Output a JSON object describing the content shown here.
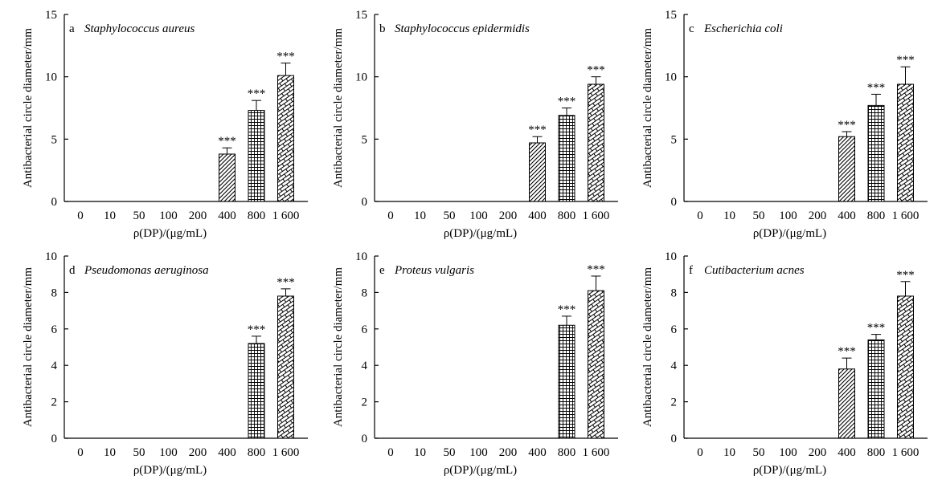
{
  "figure": {
    "y_axis_title": "Antibacterial circle diameter/mm",
    "x_axis_title": "ρ(DP)/(μg/mL)"
  },
  "chart_data": [
    {
      "type": "bar",
      "panel_label": "a",
      "title": "Staphylococcus aureus",
      "xlabel": "ρ(DP)/(μg/mL)",
      "ylabel": "Antibacterial circle diameter/mm",
      "categories": [
        "0",
        "10",
        "50",
        "100",
        "200",
        "400",
        "800",
        "1 600"
      ],
      "values": [
        0,
        0,
        0,
        0,
        0,
        3.8,
        7.3,
        10.1
      ],
      "errors": [
        0,
        0,
        0,
        0,
        0,
        0.5,
        0.8,
        1.0
      ],
      "significance": [
        "",
        "",
        "",
        "",
        "",
        "***",
        "***",
        "***"
      ],
      "patterns": [
        "none",
        "none",
        "none",
        "none",
        "none",
        "diagonal",
        "grid",
        "brick"
      ],
      "ylim": [
        0,
        15
      ],
      "yticks": [
        0,
        5,
        10,
        15
      ]
    },
    {
      "type": "bar",
      "panel_label": "b",
      "title": "Staphylococcus epidermidis",
      "xlabel": "ρ(DP)/(μg/mL)",
      "ylabel": "Antibacterial circle diameter/mm",
      "categories": [
        "0",
        "10",
        "50",
        "100",
        "200",
        "400",
        "800",
        "1 600"
      ],
      "values": [
        0,
        0,
        0,
        0,
        0,
        4.7,
        6.9,
        9.4
      ],
      "errors": [
        0,
        0,
        0,
        0,
        0,
        0.5,
        0.6,
        0.6
      ],
      "significance": [
        "",
        "",
        "",
        "",
        "",
        "***",
        "***",
        "***"
      ],
      "patterns": [
        "none",
        "none",
        "none",
        "none",
        "none",
        "diagonal",
        "grid",
        "brick"
      ],
      "ylim": [
        0,
        15
      ],
      "yticks": [
        0,
        5,
        10,
        15
      ]
    },
    {
      "type": "bar",
      "panel_label": "c",
      "title": "Escherichia coli",
      "xlabel": "ρ(DP)/(μg/mL)",
      "ylabel": "Antibacterial circle diameter/mm",
      "categories": [
        "0",
        "10",
        "50",
        "100",
        "200",
        "400",
        "800",
        "1 600"
      ],
      "values": [
        0,
        0,
        0,
        0,
        0,
        5.2,
        7.7,
        9.4
      ],
      "errors": [
        0,
        0,
        0,
        0,
        0,
        0.4,
        0.9,
        1.4
      ],
      "significance": [
        "",
        "",
        "",
        "",
        "",
        "***",
        "***",
        "***"
      ],
      "patterns": [
        "none",
        "none",
        "none",
        "none",
        "none",
        "diagonal",
        "grid",
        "brick"
      ],
      "ylim": [
        0,
        15
      ],
      "yticks": [
        0,
        5,
        10,
        15
      ]
    },
    {
      "type": "bar",
      "panel_label": "d",
      "title": "Pseudomonas aeruginosa",
      "xlabel": "ρ(DP)/(μg/mL)",
      "ylabel": "Antibacterial circle diameter/mm",
      "categories": [
        "0",
        "10",
        "50",
        "100",
        "200",
        "400",
        "800",
        "1 600"
      ],
      "values": [
        0,
        0,
        0,
        0,
        0,
        0,
        5.2,
        7.8
      ],
      "errors": [
        0,
        0,
        0,
        0,
        0,
        0,
        0.4,
        0.4
      ],
      "significance": [
        "",
        "",
        "",
        "",
        "",
        "",
        "***",
        "***"
      ],
      "patterns": [
        "none",
        "none",
        "none",
        "none",
        "none",
        "diagonal",
        "grid",
        "brick"
      ],
      "ylim": [
        0,
        10
      ],
      "yticks": [
        0,
        2,
        4,
        6,
        8,
        10
      ]
    },
    {
      "type": "bar",
      "panel_label": "e",
      "title": "Proteus vulgaris",
      "xlabel": "ρ(DP)/(μg/mL)",
      "ylabel": "Antibacterial circle diameter/mm",
      "categories": [
        "0",
        "10",
        "50",
        "100",
        "200",
        "400",
        "800",
        "1 600"
      ],
      "values": [
        0,
        0,
        0,
        0,
        0,
        0,
        6.2,
        8.1
      ],
      "errors": [
        0,
        0,
        0,
        0,
        0,
        0,
        0.5,
        0.8
      ],
      "significance": [
        "",
        "",
        "",
        "",
        "",
        "",
        "***",
        "***"
      ],
      "patterns": [
        "none",
        "none",
        "none",
        "none",
        "none",
        "diagonal",
        "grid",
        "brick"
      ],
      "ylim": [
        0,
        10
      ],
      "yticks": [
        0,
        2,
        4,
        6,
        8,
        10
      ]
    },
    {
      "type": "bar",
      "panel_label": "f",
      "title": "Cutibacterium acnes",
      "xlabel": "ρ(DP)/(μg/mL)",
      "ylabel": "Antibacterial circle diameter/mm",
      "categories": [
        "0",
        "10",
        "50",
        "100",
        "200",
        "400",
        "800",
        "1 600"
      ],
      "values": [
        0,
        0,
        0,
        0,
        0,
        3.8,
        5.4,
        7.8
      ],
      "errors": [
        0,
        0,
        0,
        0,
        0,
        0.6,
        0.3,
        0.8
      ],
      "significance": [
        "",
        "",
        "",
        "",
        "",
        "***",
        "***",
        "***"
      ],
      "patterns": [
        "none",
        "none",
        "none",
        "none",
        "none",
        "diagonal",
        "grid",
        "brick"
      ],
      "ylim": [
        0,
        10
      ],
      "yticks": [
        0,
        2,
        4,
        6,
        8,
        10
      ]
    }
  ]
}
